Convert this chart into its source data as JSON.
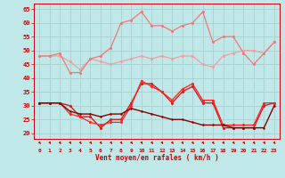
{
  "x": [
    0,
    1,
    2,
    3,
    4,
    5,
    6,
    7,
    8,
    9,
    10,
    11,
    12,
    13,
    14,
    15,
    16,
    17,
    18,
    19,
    20,
    21,
    22,
    23
  ],
  "line1": [
    48,
    48,
    48,
    46,
    43,
    47,
    46,
    45,
    46,
    47,
    48,
    47,
    48,
    47,
    48,
    48,
    45,
    44,
    48,
    49,
    50,
    50,
    49,
    53
  ],
  "line2": [
    48,
    48,
    49,
    42,
    42,
    47,
    48,
    51,
    60,
    61,
    64,
    59,
    59,
    57,
    59,
    60,
    64,
    53,
    55,
    55,
    49,
    45,
    49,
    53
  ],
  "line3": [
    31,
    31,
    31,
    30,
    26,
    26,
    22,
    25,
    25,
    31,
    38,
    38,
    35,
    31,
    35,
    37,
    31,
    31,
    22,
    22,
    22,
    22,
    30,
    31
  ],
  "line4": [
    31,
    31,
    31,
    27,
    26,
    24,
    23,
    24,
    24,
    30,
    39,
    37,
    35,
    32,
    36,
    38,
    32,
    32,
    23,
    23,
    23,
    23,
    31,
    31
  ],
  "line5": [
    31,
    31,
    31,
    28,
    27,
    27,
    26,
    27,
    27,
    29,
    28,
    27,
    26,
    25,
    25,
    24,
    23,
    23,
    23,
    22,
    22,
    22,
    22,
    30
  ],
  "color1": "#f0a0a0",
  "color2": "#f07878",
  "color3": "#cc2222",
  "color4": "#ff2222",
  "color5": "#880000",
  "bg_color": "#c0e8e8",
  "grid_color": "#a8d0d0",
  "axis_color": "#cc0000",
  "tick_color": "#cc0000",
  "xlabel": "Vent moyen/en rafales ( km/h )",
  "ylim": [
    18,
    67
  ],
  "yticks": [
    20,
    25,
    30,
    35,
    40,
    45,
    50,
    55,
    60,
    65
  ],
  "xlim": [
    -0.5,
    23.5
  ]
}
